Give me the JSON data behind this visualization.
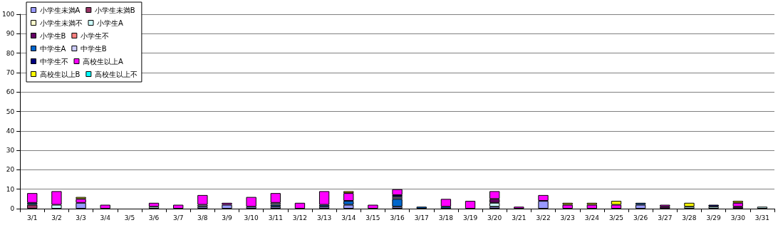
{
  "chart_data": {
    "type": "bar",
    "stacked": true,
    "categories": [
      "3/1",
      "3/2",
      "3/3",
      "3/4",
      "3/5",
      "3/6",
      "3/7",
      "3/8",
      "3/9",
      "3/10",
      "3/11",
      "3/12",
      "3/13",
      "3/14",
      "3/15",
      "3/16",
      "3/17",
      "3/18",
      "3/19",
      "3/20",
      "3/21",
      "3/22",
      "3/23",
      "3/24",
      "3/25",
      "3/26",
      "3/27",
      "3/28",
      "3/29",
      "3/30",
      "3/31"
    ],
    "ylim": [
      0,
      100
    ],
    "yticks": [
      0,
      10,
      20,
      30,
      40,
      50,
      60,
      70,
      80,
      90,
      100
    ],
    "grid": "y",
    "legend": "top left",
    "series": [
      {
        "name": "小学生未満A",
        "color": "#9999ff",
        "values": [
          0,
          0,
          3,
          0,
          0,
          0,
          0,
          1,
          2,
          1,
          1,
          0,
          1,
          2,
          0,
          1,
          0,
          0,
          0,
          1,
          0,
          4,
          0,
          0,
          0,
          2,
          0,
          0,
          0,
          0,
          0
        ]
      },
      {
        "name": "小学生未満B",
        "color": "#993366",
        "values": [
          2,
          0,
          0,
          0,
          0,
          0,
          0,
          0,
          0,
          0,
          0,
          0,
          0,
          0,
          0,
          0,
          0,
          0,
          0,
          0,
          0,
          0,
          0,
          0,
          0,
          0,
          0,
          0,
          0,
          0,
          0
        ]
      },
      {
        "name": "小学生未満不",
        "color": "#ffffcc",
        "values": [
          0,
          0,
          0,
          0,
          0,
          0,
          0,
          0,
          0,
          0,
          0,
          0,
          0,
          0,
          0,
          0,
          0,
          0,
          0,
          0,
          0,
          0,
          0,
          0,
          0,
          0,
          0,
          0,
          0,
          0,
          0
        ]
      },
      {
        "name": "小学生A",
        "color": "#ccffff",
        "values": [
          0,
          2,
          0,
          0,
          0,
          1,
          0,
          0,
          0,
          0,
          0,
          0,
          0,
          0,
          0,
          0,
          0,
          0,
          0,
          2,
          0,
          0,
          0,
          0,
          0,
          0,
          0,
          1,
          1,
          0,
          1
        ]
      },
      {
        "name": "小学生B",
        "color": "#660066",
        "values": [
          0,
          0,
          0,
          0,
          0,
          0,
          0,
          0,
          0,
          0,
          0,
          0,
          0,
          0,
          0,
          0,
          0,
          0,
          0,
          2,
          0,
          0,
          0,
          0,
          0,
          0,
          1,
          0,
          0,
          1,
          0
        ]
      },
      {
        "name": "小学生不",
        "color": "#ff8080",
        "values": [
          0,
          0,
          0,
          0,
          0,
          0,
          0,
          0,
          0,
          0,
          0,
          0,
          0,
          0,
          0,
          0,
          0,
          0,
          0,
          0,
          0,
          0,
          0,
          0,
          0,
          0,
          0,
          0,
          0,
          0,
          0
        ]
      },
      {
        "name": "中学生A",
        "color": "#0066cc",
        "values": [
          1,
          0,
          0,
          0,
          0,
          0,
          0,
          0,
          0,
          0,
          1,
          0,
          1,
          2,
          0,
          4,
          1,
          1,
          0,
          0,
          0,
          0,
          0,
          0,
          0,
          1,
          0,
          0,
          0,
          0,
          0
        ]
      },
      {
        "name": "中学生B",
        "color": "#ccccff",
        "values": [
          0,
          0,
          0,
          0,
          0,
          0,
          0,
          1,
          0,
          0,
          1,
          0,
          0,
          0,
          0,
          1,
          0,
          0,
          0,
          0,
          0,
          0,
          0,
          0,
          0,
          0,
          0,
          0,
          0,
          0,
          0
        ]
      },
      {
        "name": "中学生不",
        "color": "#000080",
        "values": [
          0,
          0,
          0,
          0,
          0,
          0,
          0,
          0,
          0,
          0,
          0,
          0,
          0,
          0,
          0,
          1,
          0,
          0,
          0,
          0,
          0,
          0,
          0,
          0,
          0,
          0,
          0,
          0,
          1,
          0,
          0
        ]
      },
      {
        "name": "高校生以上A",
        "color": "#ff00ff",
        "values": [
          5,
          7,
          2,
          2,
          0,
          2,
          2,
          5,
          1,
          5,
          5,
          3,
          7,
          4,
          2,
          3,
          0,
          4,
          4,
          4,
          1,
          3,
          2,
          2,
          2,
          0,
          1,
          0,
          0,
          2,
          0
        ]
      },
      {
        "name": "高校生以上B",
        "color": "#ffff00",
        "values": [
          0,
          0,
          1,
          0,
          0,
          0,
          0,
          0,
          0,
          0,
          0,
          0,
          0,
          1,
          0,
          0,
          0,
          0,
          0,
          0,
          0,
          0,
          1,
          1,
          2,
          0,
          0,
          2,
          0,
          1,
          0
        ]
      },
      {
        "name": "高校生以上不",
        "color": "#00ffff",
        "values": [
          0,
          0,
          0,
          0,
          0,
          0,
          0,
          0,
          0,
          0,
          0,
          0,
          0,
          0,
          0,
          0,
          0,
          0,
          0,
          0,
          0,
          0,
          0,
          0,
          0,
          0,
          0,
          0,
          0,
          0,
          0
        ]
      }
    ]
  }
}
